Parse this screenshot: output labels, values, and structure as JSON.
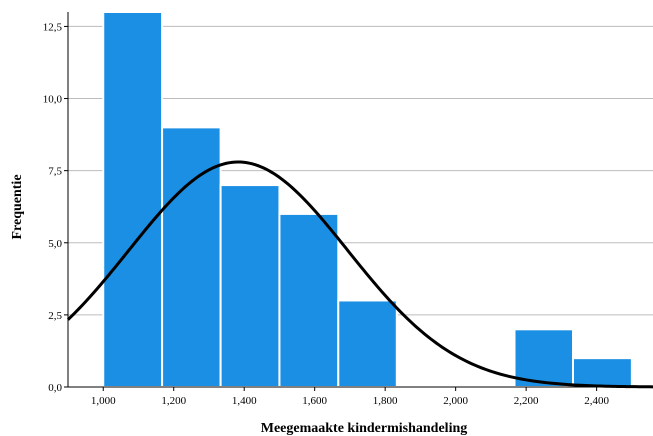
{
  "chart_data": {
    "type": "bar",
    "subtype": "histogram",
    "xlabel": "Meegemaakte kindermishandeling",
    "ylabel": "Frequentie",
    "x_ticks": [
      "1,000",
      "1,200",
      "1,400",
      "1,600",
      "1,800",
      "2,000",
      "2,200",
      "2,400"
    ],
    "x_tick_values": [
      1.0,
      1.2,
      1.4,
      1.6,
      1.8,
      2.0,
      2.2,
      2.4
    ],
    "y_ticks": [
      "0,0",
      "2,5",
      "5,0",
      "7,5",
      "10,0",
      "12,5"
    ],
    "y_tick_values": [
      0,
      2.5,
      5.0,
      7.5,
      10.0,
      12.5
    ],
    "xlim": [
      0.9,
      2.56
    ],
    "ylim": [
      0,
      13.0
    ],
    "bins": [
      {
        "start": 1.0,
        "end": 1.167,
        "count": 13
      },
      {
        "start": 1.167,
        "end": 1.333,
        "count": 9
      },
      {
        "start": 1.333,
        "end": 1.5,
        "count": 7
      },
      {
        "start": 1.5,
        "end": 1.667,
        "count": 6
      },
      {
        "start": 1.667,
        "end": 1.833,
        "count": 3
      },
      {
        "start": 2.167,
        "end": 2.333,
        "count": 2
      },
      {
        "start": 2.333,
        "end": 2.5,
        "count": 1
      }
    ],
    "normal_curve": {
      "peak_x": 1.383,
      "peak_y": 7.8,
      "sd": 0.311
    },
    "grid": "horizontal",
    "bar_color": "#1A8FE3",
    "curve_color": "#000000"
  }
}
